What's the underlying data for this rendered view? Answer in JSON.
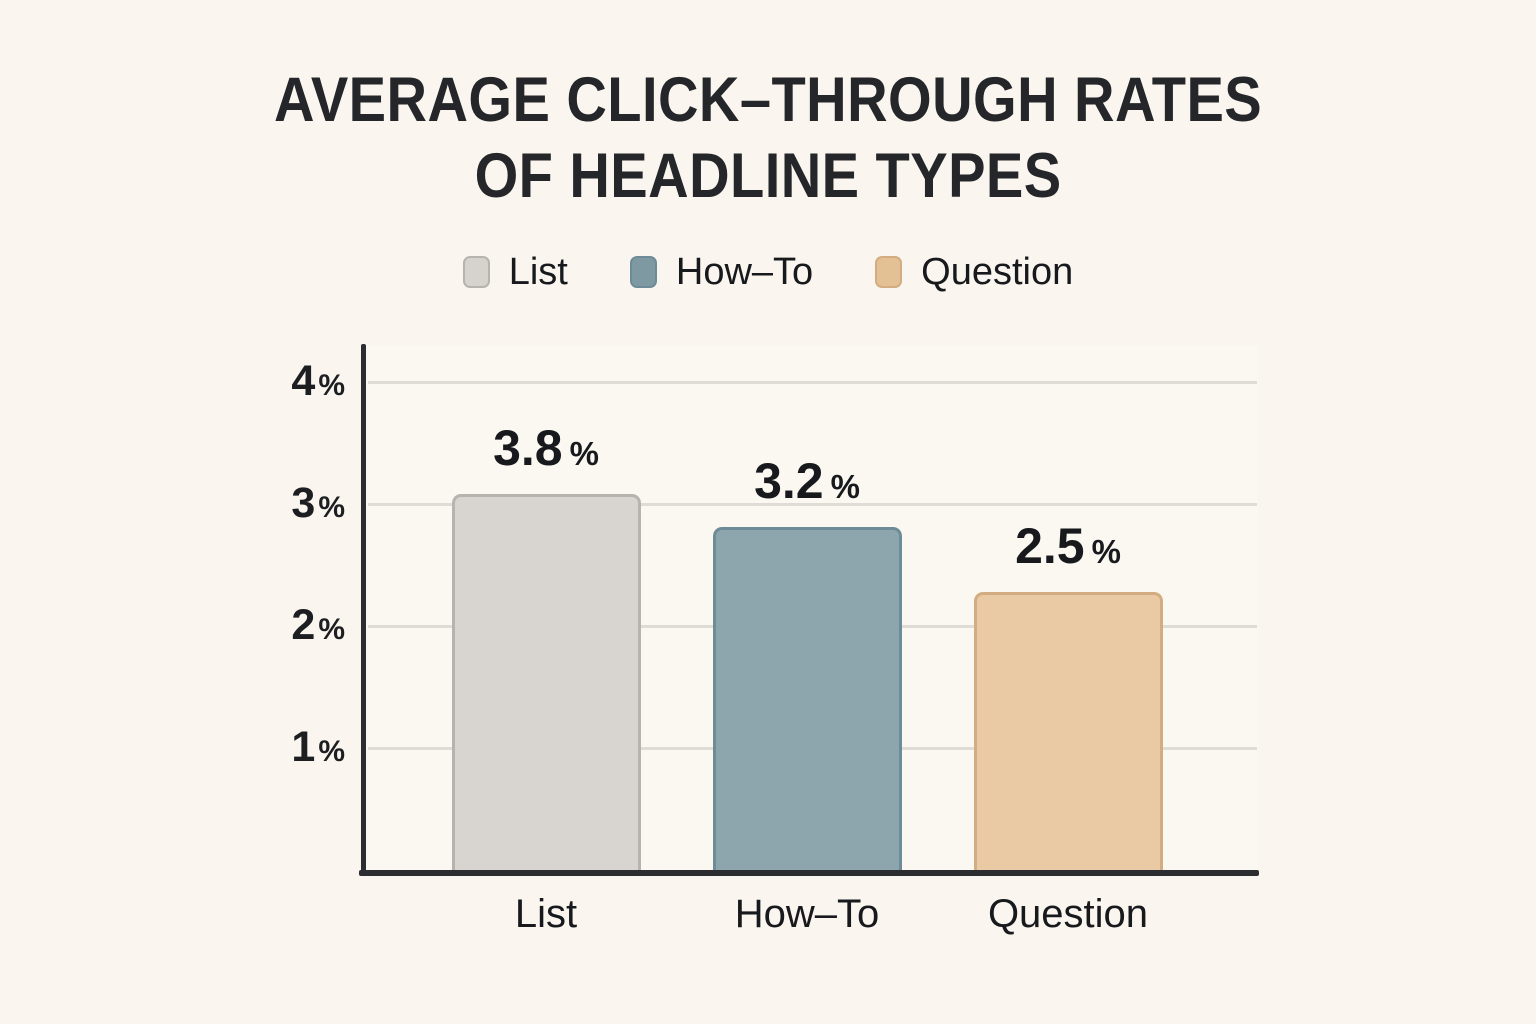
{
  "page": {
    "background": "#faf6ef"
  },
  "chart_data": {
    "type": "bar",
    "title": "AVERAGE CLICK–THROUGH RATES OF HEADLINE TYPES",
    "title_lines": [
      "AVERAGE CLICK–THROUGH RATES",
      "OF HEADLINE TYPES"
    ],
    "categories": [
      "List",
      "How–To",
      "Question"
    ],
    "values": [
      3.8,
      3.2,
      2.5
    ],
    "unit": "%",
    "xlabel": "",
    "ylabel": "",
    "y_axis": {
      "ticks": [
        4,
        3,
        2,
        1
      ],
      "suffix": "%",
      "min": 0,
      "max": 4.3
    },
    "grid": true,
    "legend_position": "top",
    "series": [
      {
        "name": "List",
        "value": 3.8,
        "value_label": "3.8",
        "fill": "#d8d4d0",
        "border": "#b7b3ae",
        "legend_swatch": "#d6d2cd",
        "drawn_percent": 3.08
      },
      {
        "name": "How–To",
        "value": 3.2,
        "value_label": "3.2",
        "fill": "#8da6ae",
        "border": "#6e8c97",
        "legend_swatch": "#7f99a3",
        "drawn_percent": 2.81
      },
      {
        "name": "Question",
        "value": 2.5,
        "value_label": "2.5",
        "fill": "#e9caa4",
        "border": "#d3ad81",
        "legend_swatch": "#e4c095",
        "drawn_percent": 2.28
      }
    ],
    "colors": {
      "background": "#faf6ef",
      "plot_background": "#fbf8f2",
      "axis": "#2b2d31",
      "grid": "#dfdbd5",
      "title_text": "#24262a",
      "label_text": "#17191d"
    }
  }
}
